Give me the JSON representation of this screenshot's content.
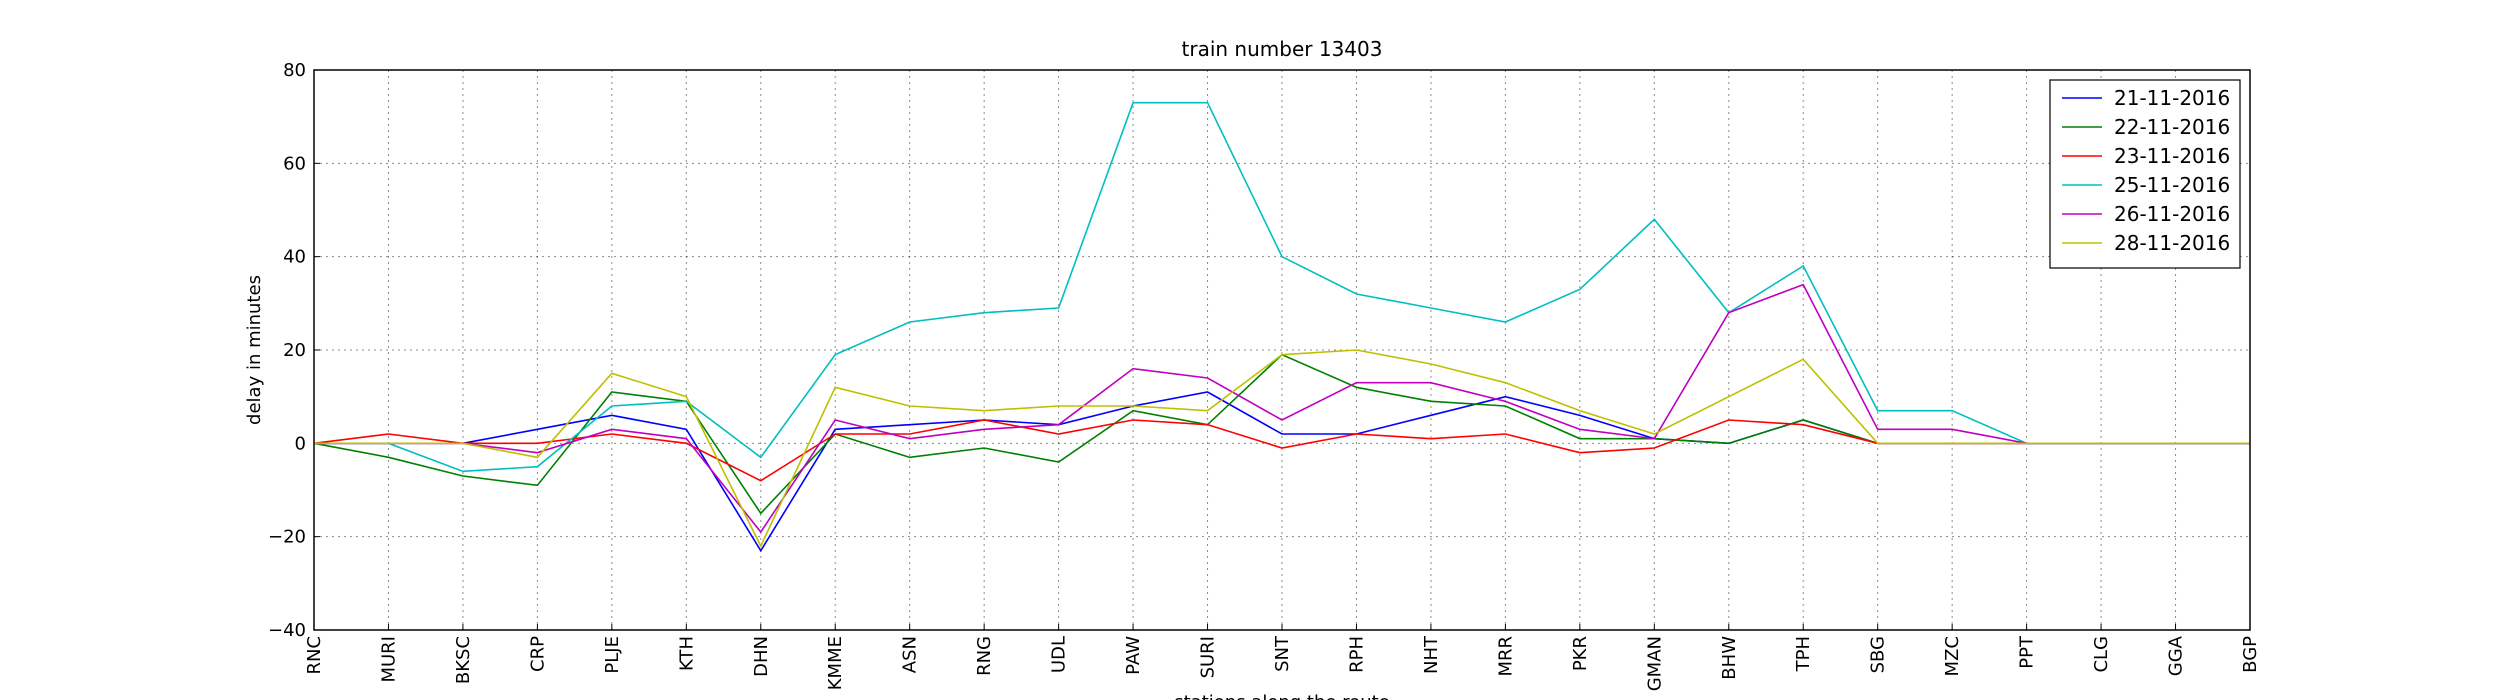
{
  "chart_data": {
    "type": "line",
    "title": "train number 13403",
    "x_label": "stations along the route",
    "y_label": "delay in minutes",
    "categories": [
      "RNC",
      "MURI",
      "BKSC",
      "CRP",
      "PLJE",
      "KTH",
      "DHN",
      "KMME",
      "ASN",
      "RNG",
      "UDL",
      "PAW",
      "SURI",
      "SNT",
      "RPH",
      "NHT",
      "MRR",
      "PKR",
      "GMAN",
      "BHW",
      "TPH",
      "SBG",
      "MZC",
      "PPT",
      "CLG",
      "GGA",
      "BGP"
    ],
    "ylim": [
      -40,
      80
    ],
    "yticks": [
      {
        "value": -40,
        "label": "−40"
      },
      {
        "value": -20,
        "label": "−20"
      },
      0,
      20,
      40,
      60,
      80
    ],
    "grid": true,
    "legend": "upper right",
    "series": [
      {
        "name": "21-11-2016",
        "color": "#0000ff",
        "values": [
          0,
          0,
          0,
          3,
          6,
          3,
          -23,
          3,
          4,
          5,
          4,
          8,
          11,
          2,
          2,
          6,
          10,
          6,
          1,
          0,
          5,
          0,
          0,
          0,
          0,
          0,
          0
        ]
      },
      {
        "name": "22-11-2016",
        "color": "#008000",
        "values": [
          0,
          -3,
          -7,
          -9,
          11,
          9,
          -15,
          2,
          -3,
          -1,
          -4,
          7,
          4,
          19,
          12,
          9,
          8,
          1,
          1,
          0,
          5,
          0,
          0,
          0,
          0,
          0,
          0
        ]
      },
      {
        "name": "23-11-2016",
        "color": "#ff0000",
        "values": [
          0,
          2,
          0,
          0,
          2,
          0,
          -8,
          2,
          2,
          5,
          2,
          5,
          4,
          -1,
          2,
          1,
          2,
          -2,
          -1,
          5,
          4,
          0,
          0,
          0,
          0,
          0,
          0
        ]
      },
      {
        "name": "25-11-2016",
        "color": "#00bfbf",
        "values": [
          0,
          0,
          -6,
          -5,
          8,
          9,
          -3,
          19,
          26,
          28,
          29,
          73,
          73,
          40,
          32,
          29,
          26,
          33,
          48,
          28,
          38,
          7,
          7,
          0,
          0,
          0,
          0
        ]
      },
      {
        "name": "26-11-2016",
        "color": "#bf00bf",
        "values": [
          0,
          0,
          0,
          -2,
          3,
          1,
          -19,
          5,
          1,
          3,
          4,
          16,
          14,
          5,
          13,
          13,
          9,
          3,
          1,
          28,
          34,
          3,
          3,
          0,
          0,
          0,
          0
        ]
      },
      {
        "name": "28-11-2016",
        "color": "#bfbf00",
        "values": [
          0,
          0,
          0,
          -3,
          15,
          10,
          -22,
          12,
          8,
          7,
          8,
          8,
          7,
          19,
          20,
          17,
          13,
          7,
          2,
          10,
          18,
          0,
          0,
          0,
          0,
          0,
          0
        ]
      }
    ]
  }
}
